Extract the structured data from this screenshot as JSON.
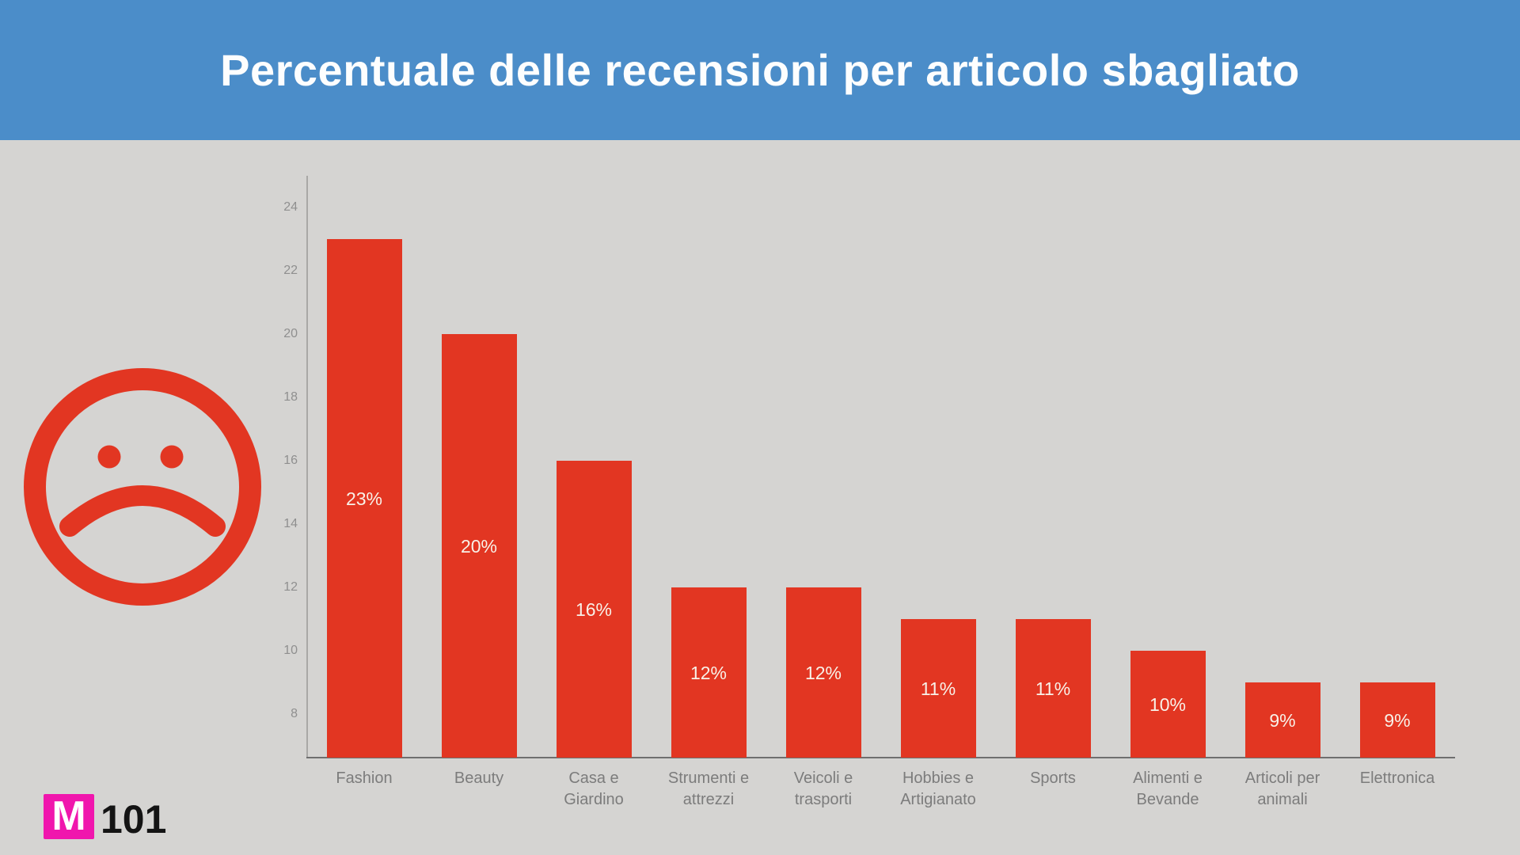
{
  "header": {
    "title": "Percentuale delle recensioni per articolo sbagliato",
    "background_color": "#4b8dc9",
    "text_color": "#fdfefe"
  },
  "icons": {
    "sad_face_color": "#e23622"
  },
  "chart_data": {
    "type": "bar",
    "title": "Percentuale delle recensioni per articolo sbagliato",
    "categories": [
      "Fashion",
      "Beauty",
      "Casa e Giardino",
      "Strumenti e attrezzi",
      "Veicoli e trasporti",
      "Hobbies e Artigianato",
      "Sports",
      "Alimenti e Bevande",
      "Articoli per animali",
      "Elettronica"
    ],
    "category_lines": [
      [
        "Fashion"
      ],
      [
        "Beauty"
      ],
      [
        "Casa e",
        "Giardino"
      ],
      [
        "Strumenti e",
        "attrezzi"
      ],
      [
        "Veicoli e",
        "trasporti"
      ],
      [
        "Hobbies e",
        "Artigianato"
      ],
      [
        "Sports"
      ],
      [
        "Alimenti e",
        "Bevande"
      ],
      [
        "Articoli per",
        "animali"
      ],
      [
        "Elettronica"
      ]
    ],
    "values": [
      23,
      20,
      16,
      12,
      12,
      11,
      11,
      10,
      9,
      9
    ],
    "bar_labels": [
      "23%",
      "20%",
      "16%",
      "12%",
      "12%",
      "11%",
      "11%",
      "10%",
      "9%",
      "9%"
    ],
    "y_ticks": [
      8,
      10,
      12,
      14,
      16,
      18,
      20,
      22,
      24
    ],
    "ylim": [
      6.625,
      25.1
    ],
    "xlabel": "",
    "ylabel": "",
    "grid": false,
    "legend": false,
    "bar_color": "#e23622",
    "bar_label_color": "#f8f1e8",
    "axis_line_color": "#a9a8a6",
    "baseline_color": "#6f6f6f",
    "tick_text_color": "#8f8f8f",
    "category_text_color": "#7c7c7c"
  },
  "logo": {
    "letter": "M",
    "number": "101",
    "square_color": "#f016ad",
    "letter_color": "#ffffff",
    "number_color": "#141414"
  }
}
